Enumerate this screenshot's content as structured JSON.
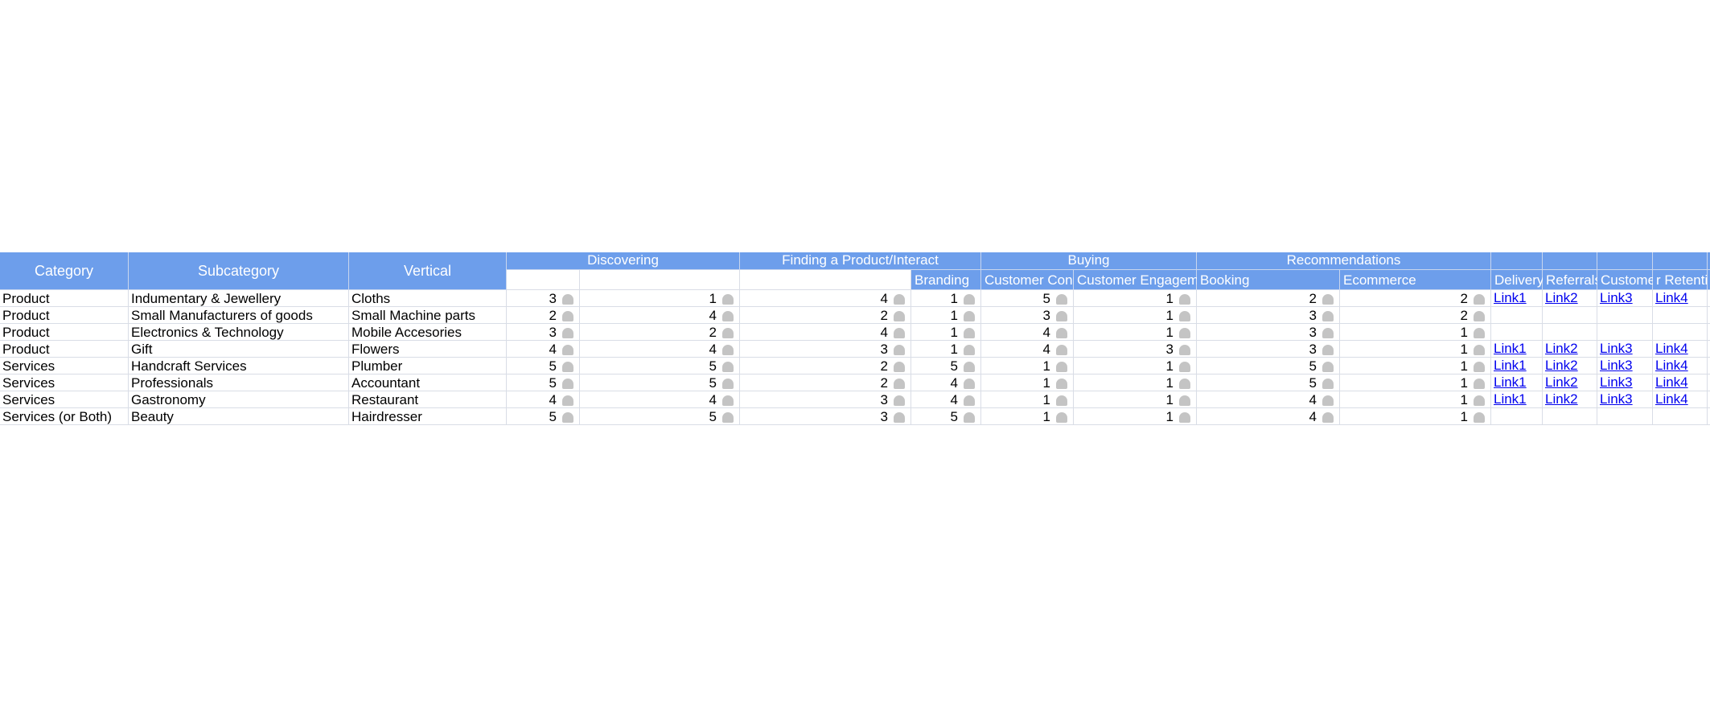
{
  "headers": {
    "category": "Category",
    "subcategory": "Subcategory",
    "vertical": "Vertical",
    "groups": {
      "discovering": "Discovering",
      "finding": "Finding a Product/Interact",
      "buying": "Buying",
      "recommendations": "Recommendations"
    },
    "sub": {
      "branding": "Branding",
      "customer_connection": "Customer Connection",
      "customer_engagement": "Customer Engagement",
      "booking": "Booking",
      "ecommerce": "Ecommerce",
      "delivery": "Delivery",
      "referrals": "Referrals",
      "customer": "Customer",
      "retention": "r Retenti"
    }
  },
  "rows": [
    {
      "category": "Product",
      "subcategory": "Indumentary & Jewellery",
      "vertical": "Cloths",
      "v1": "3",
      "v2": "1",
      "v3": "4",
      "branding": "1",
      "cconn": "5",
      "ceng": "1",
      "booking": "2",
      "ecom": "2",
      "l1": "Link1",
      "l2": "Link2",
      "l3": "Link3",
      "l4": "Link4"
    },
    {
      "category": "Product",
      "subcategory": "Small Manufacturers of goods",
      "vertical": "Small Machine parts",
      "v1": "2",
      "v2": "4",
      "v3": "2",
      "branding": "1",
      "cconn": "3",
      "ceng": "1",
      "booking": "3",
      "ecom": "2",
      "l1": "",
      "l2": "",
      "l3": "",
      "l4": ""
    },
    {
      "category": "Product",
      "subcategory": "Electronics & Technology",
      "vertical": "Mobile Accesories",
      "v1": "3",
      "v2": "2",
      "v3": "4",
      "branding": "1",
      "cconn": "4",
      "ceng": "1",
      "booking": "3",
      "ecom": "1",
      "l1": "",
      "l2": "",
      "l3": "",
      "l4": ""
    },
    {
      "category": "Product",
      "subcategory": "Gift",
      "vertical": "Flowers",
      "v1": "4",
      "v2": "4",
      "v3": "3",
      "branding": "1",
      "cconn": "4",
      "ceng": "3",
      "booking": "3",
      "ecom": "1",
      "l1": "Link1",
      "l2": "Link2",
      "l3": "Link3",
      "l4": "Link4"
    },
    {
      "category": "Services",
      "subcategory": "Handcraft Services",
      "vertical": "Plumber",
      "v1": "5",
      "v2": "5",
      "v3": "2",
      "branding": "5",
      "cconn": "1",
      "ceng": "1",
      "booking": "5",
      "ecom": "1",
      "l1": "Link1",
      "l2": "Link2",
      "l3": "Link3",
      "l4": "Link4"
    },
    {
      "category": "Services",
      "subcategory": "Professionals",
      "vertical": "Accountant",
      "v1": "5",
      "v2": "5",
      "v3": "2",
      "branding": "4",
      "cconn": "1",
      "ceng": "1",
      "booking": "5",
      "ecom": "1",
      "l1": "Link1",
      "l2": "Link2",
      "l3": "Link3",
      "l4": "Link4"
    },
    {
      "category": "Services",
      "subcategory": "Gastronomy",
      "vertical": "Restaurant",
      "v1": "4",
      "v2": "4",
      "v3": "3",
      "branding": "4",
      "cconn": "1",
      "ceng": "1",
      "booking": "4",
      "ecom": "1",
      "l1": "Link1",
      "l2": "Link2",
      "l3": "Link3",
      "l4": "Link4"
    },
    {
      "category": "Services (or Both)",
      "subcategory": "Beauty",
      "vertical": "Hairdresser",
      "v1": "5",
      "v2": "5",
      "v3": "3",
      "branding": "5",
      "cconn": "1",
      "ceng": "1",
      "booking": "4",
      "ecom": "1",
      "l1": "",
      "l2": "",
      "l3": "",
      "l4": ""
    }
  ],
  "colors": {
    "header_bg": "#6d9eeb",
    "grid_line": "#d9dde6",
    "rating_icon": "#c4c4c4",
    "link": "#0000ee"
  },
  "icons": {
    "rating": "rating-icon"
  }
}
